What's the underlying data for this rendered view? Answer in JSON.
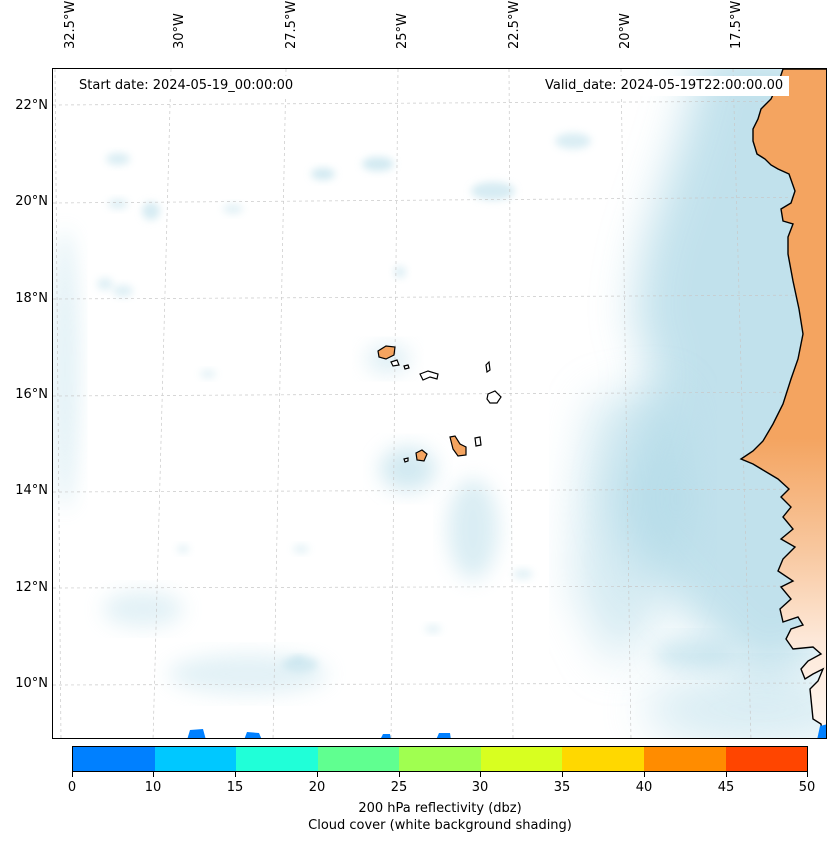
{
  "map": {
    "start_date": "Start date: 2024-05-19_00:00:00",
    "valid_date": "Valid_date: 2024-05-19T22:00:00.00",
    "longitude_labels": [
      "32.5°W",
      "30°W",
      "27.5°W",
      "25°W",
      "22.5°W",
      "20°W",
      "17.5°W"
    ],
    "latitude_labels": [
      "22°N",
      "20°N",
      "18°N",
      "16°N",
      "14°N",
      "12°N",
      "10°N"
    ],
    "land_color": "#f4a460",
    "cloud_color": "#add8e6"
  },
  "colorbar": {
    "ticks": [
      "0",
      "10",
      "15",
      "20",
      "25",
      "30",
      "35",
      "40",
      "45",
      "50"
    ],
    "colors": [
      "#0080ff",
      "#00c8ff",
      "#20ffd8",
      "#60ff90",
      "#a0ff50",
      "#d8ff20",
      "#ffd800",
      "#ff8c00",
      "#ff4500"
    ],
    "label_line1": "200 hPa reflectivity (dbz)",
    "label_line2": "Cloud cover (white background shading)"
  }
}
